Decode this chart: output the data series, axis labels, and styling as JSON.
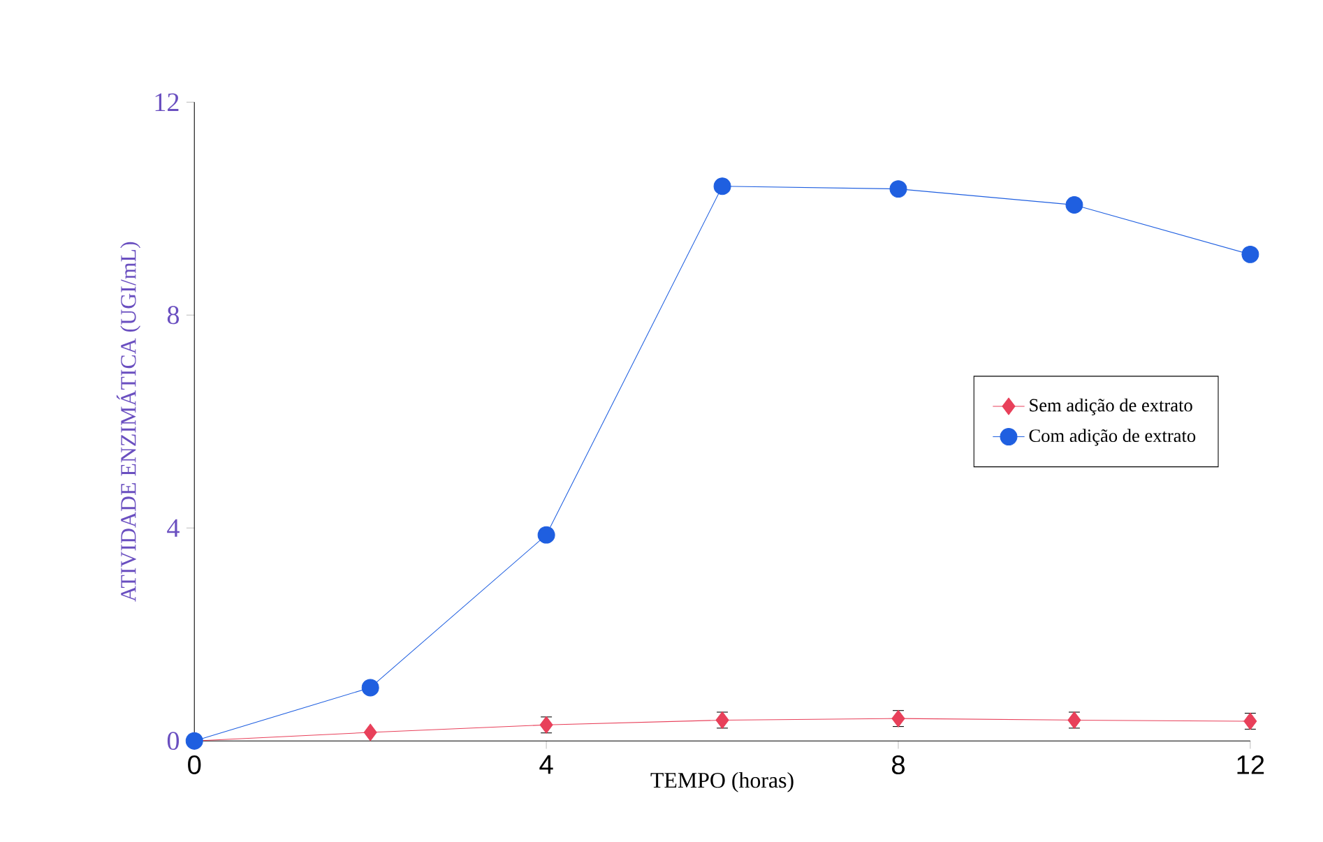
{
  "chart_data": {
    "type": "line",
    "xlabel": "TEMPO  (horas)",
    "ylabel": "ATIVIDADE ENZIMÁTICA (UGI/mL)",
    "x": [
      0,
      2,
      4,
      6,
      8,
      10,
      12
    ],
    "series": [
      {
        "name": "Sem adição de extrato",
        "color": "#e8405a",
        "marker": "diamond",
        "values": [
          0.0,
          0.16,
          0.3,
          0.39,
          0.42,
          0.39,
          0.37
        ],
        "errors": [
          null,
          null,
          0.15,
          0.15,
          0.15,
          0.15,
          0.15
        ]
      },
      {
        "name": "Com adição de extrato",
        "color": "#1f5fe0",
        "marker": "circle",
        "values": [
          0.0,
          1.0,
          3.87,
          10.42,
          10.37,
          10.07,
          9.14
        ]
      }
    ],
    "xlim": [
      0,
      12
    ],
    "ylim": [
      0,
      12
    ],
    "xticks": [
      0,
      4,
      8,
      12
    ],
    "yticks": [
      0,
      4,
      8,
      12
    ],
    "legend": "right",
    "grid": false
  }
}
